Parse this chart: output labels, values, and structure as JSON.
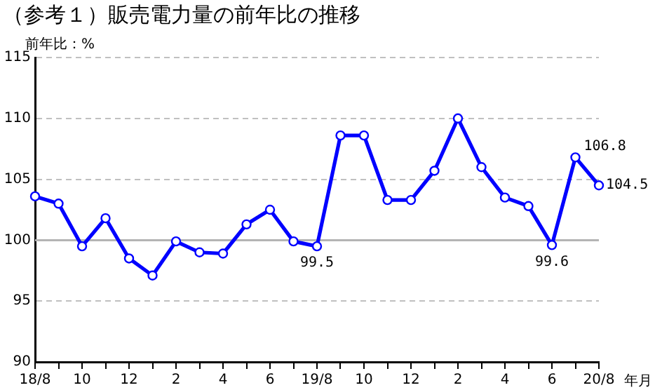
{
  "chart_data": {
    "type": "line",
    "title": "（参考１）販売電力量の前年比の推移",
    "ylabel": "前年比：%",
    "xlabel": "年月",
    "categories": [
      "18/8",
      null,
      "10",
      null,
      "12",
      null,
      "2",
      null,
      "4",
      null,
      "6",
      null,
      "19/8",
      null,
      "10",
      null,
      "12",
      null,
      "2",
      null,
      "4",
      null,
      "6",
      null,
      "20/8"
    ],
    "series": [
      {
        "color": "#0000ff",
        "values": [
          103.6,
          103.0,
          99.5,
          101.8,
          98.5,
          97.1,
          99.9,
          99.0,
          98.9,
          101.3,
          102.5,
          99.9,
          99.5,
          108.6,
          108.6,
          103.3,
          103.3,
          105.7,
          110.0,
          106.0,
          103.5,
          102.8,
          99.6,
          106.8,
          104.5
        ],
        "value_labels": [
          null,
          null,
          null,
          null,
          null,
          null,
          null,
          null,
          null,
          null,
          null,
          null,
          "99.5",
          null,
          null,
          null,
          null,
          null,
          null,
          null,
          null,
          null,
          "99.6",
          "106.8",
          "104.5"
        ]
      }
    ],
    "ylim": [
      90,
      115
    ],
    "yticks": [
      90,
      95,
      100,
      105,
      110,
      115
    ],
    "grid": "y",
    "marker": "circle",
    "line_style": "solid",
    "legend": false,
    "ref_lines": [
      {
        "axis": "y",
        "value": 100,
        "color": "#b4b4b4"
      }
    ]
  }
}
